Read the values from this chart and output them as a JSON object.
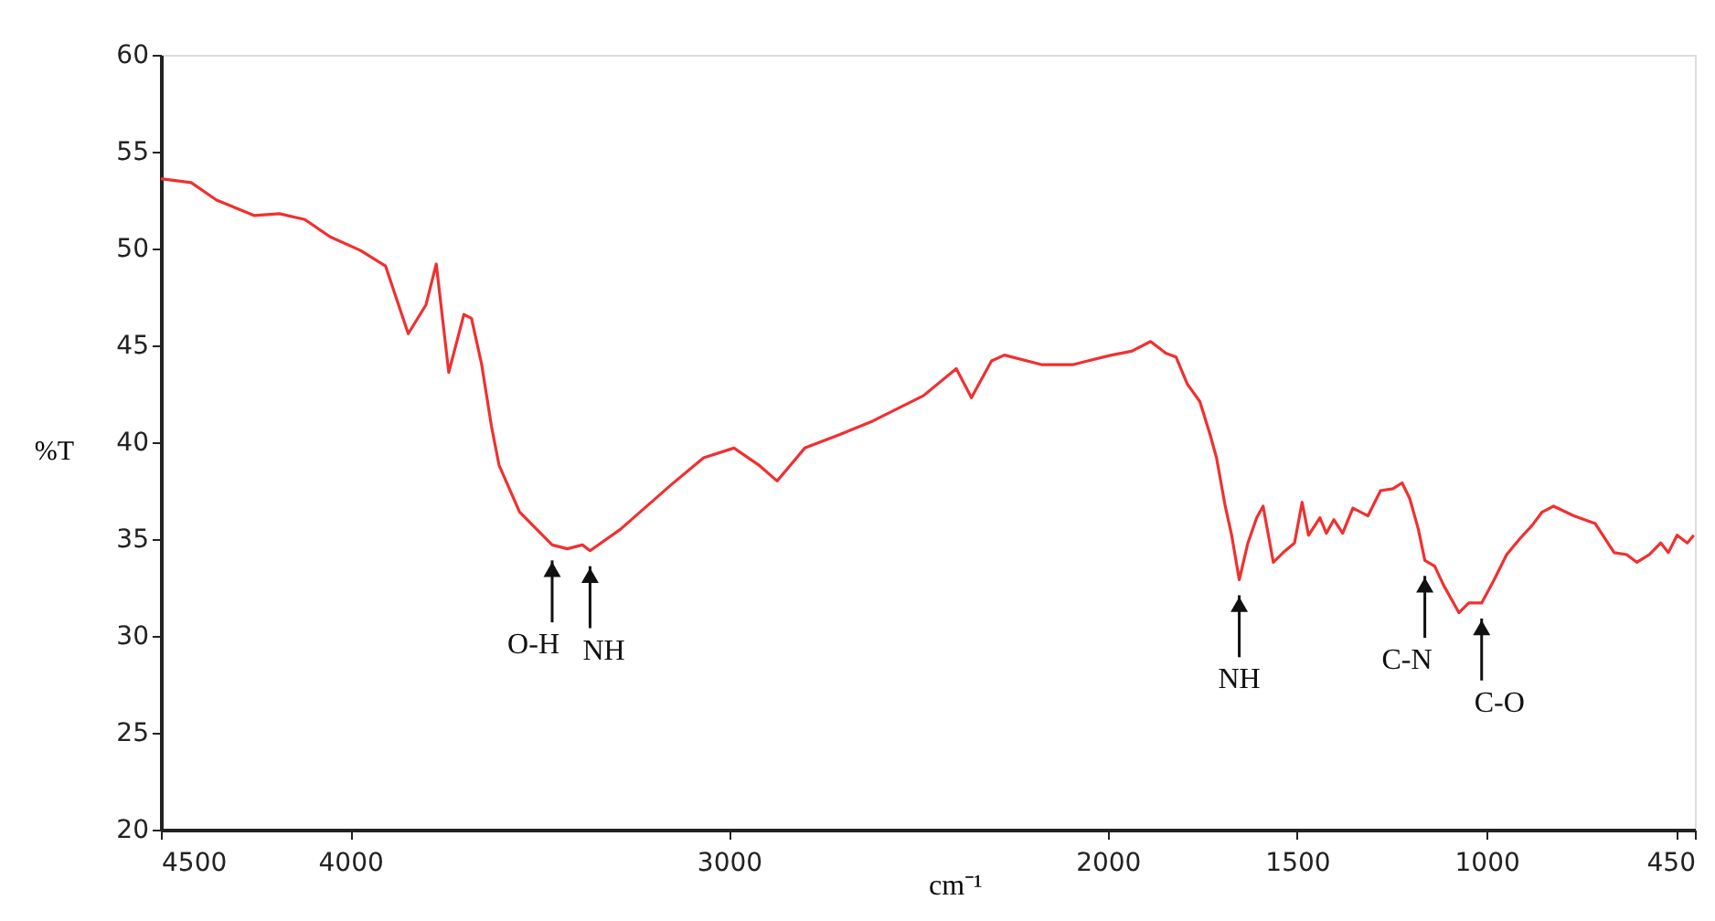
{
  "chart_data": {
    "type": "line",
    "xlabel": "cm⁻¹",
    "ylabel": "%T",
    "x": [
      4500,
      4420,
      4353,
      4253,
      4187,
      4120,
      4053,
      3973,
      3907,
      3847,
      3800,
      3773,
      3740,
      3700,
      3680,
      3653,
      3627,
      3607,
      3553,
      3467,
      3427,
      3387,
      3367,
      3287,
      3153,
      3067,
      2987,
      2920,
      2873,
      2800,
      2707,
      2620,
      2487,
      2400,
      2360,
      2307,
      2273,
      2173,
      2093,
      2053,
      1990,
      1937,
      1887,
      1847,
      1820,
      1790,
      1757,
      1730,
      1713,
      1690,
      1673,
      1653,
      1630,
      1607,
      1590,
      1563,
      1537,
      1507,
      1487,
      1470,
      1440,
      1423,
      1403,
      1380,
      1353,
      1313,
      1280,
      1247,
      1223,
      1203,
      1180,
      1163,
      1137,
      1113,
      1073,
      1047,
      1013,
      980,
      947,
      913,
      880,
      853,
      823,
      770,
      713,
      663,
      630,
      603,
      570,
      540,
      520,
      497,
      470,
      453
    ],
    "series": [
      {
        "color": "#f03030",
        "values": [
          53.6,
          53.4,
          52.5,
          51.7,
          51.8,
          51.5,
          50.6,
          49.9,
          49.1,
          45.6,
          47.1,
          49.2,
          43.6,
          46.6,
          46.4,
          44.0,
          40.8,
          38.8,
          36.4,
          34.7,
          34.5,
          34.7,
          34.4,
          35.5,
          37.8,
          39.2,
          39.7,
          38.8,
          38.0,
          39.7,
          40.4,
          41.1,
          42.4,
          43.8,
          42.3,
          44.2,
          44.5,
          44.0,
          44.0,
          44.2,
          44.5,
          44.7,
          45.2,
          44.6,
          44.4,
          43.0,
          42.1,
          40.4,
          39.2,
          36.7,
          35.2,
          32.9,
          34.8,
          36.1,
          36.7,
          33.8,
          34.3,
          34.8,
          36.9,
          35.2,
          36.1,
          35.3,
          36.0,
          35.3,
          36.6,
          36.2,
          37.5,
          37.6,
          37.9,
          37.1,
          35.5,
          33.9,
          33.6,
          32.6,
          31.2,
          31.7,
          31.7,
          32.9,
          34.2,
          35.0,
          35.7,
          36.4,
          36.7,
          36.2,
          35.8,
          34.3,
          34.2,
          33.8,
          34.2,
          34.8,
          34.3,
          35.2,
          34.8,
          35.2
        ]
      }
    ],
    "xlim": [
      4500,
      450
    ],
    "xticks": [
      4500,
      4000,
      3000,
      2000,
      1500,
      1000,
      {
        "value": 500,
        "label": null
      },
      450
    ],
    "ylim": [
      20,
      60
    ],
    "yticks": [
      20,
      25,
      30,
      35,
      40,
      45,
      50,
      55,
      60
    ],
    "grid": false,
    "marker": "none",
    "line_style": "solid",
    "annotations": [
      {
        "text": "O-H",
        "x": 3467,
        "y": 34.7
      },
      {
        "text": "NH",
        "x": 3367,
        "y": 34.4
      },
      {
        "text": "NH",
        "x": 1653,
        "y": 32.9
      },
      {
        "text": "C-N",
        "x": 1163,
        "y": 33.9
      },
      {
        "text": "C-O",
        "x": 1013,
        "y": 31.7
      }
    ]
  }
}
